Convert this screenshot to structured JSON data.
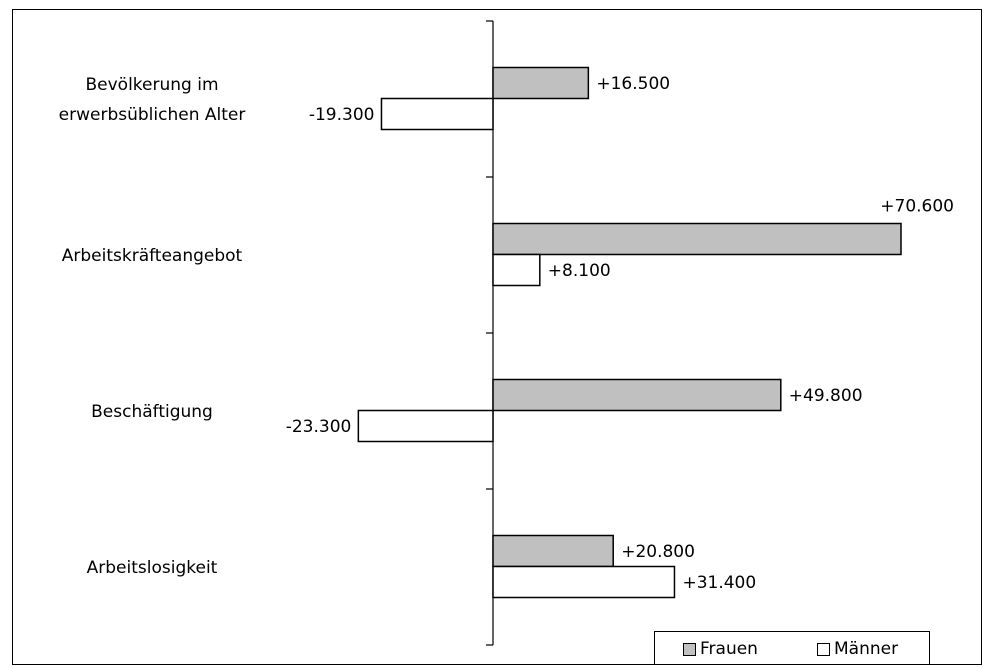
{
  "chart_data": {
    "type": "bar",
    "orientation": "horizontal",
    "categories": [
      [
        "Bevölkerung im",
        "erwerbsüblichen Alter"
      ],
      [
        "Arbeitskräfteangebot"
      ],
      [
        "Beschäftigung"
      ],
      [
        "Arbeitslosigkeit"
      ]
    ],
    "series": [
      {
        "name": "Frauen",
        "color": "#c0c0c0",
        "values": [
          16500,
          70600,
          49800,
          20800
        ],
        "labels": [
          "+16.500",
          "+70.600",
          "+49.800",
          "+20.800"
        ]
      },
      {
        "name": "Männer",
        "color": "#ffffff",
        "values": [
          -19300,
          8100,
          -23300,
          31400
        ],
        "labels": [
          "-19.300",
          "+8.100",
          "-23.300",
          "+31.400"
        ]
      }
    ],
    "xlim": [
      -24000,
      71000
    ],
    "grid": false,
    "legend_position": "bottom-right"
  }
}
